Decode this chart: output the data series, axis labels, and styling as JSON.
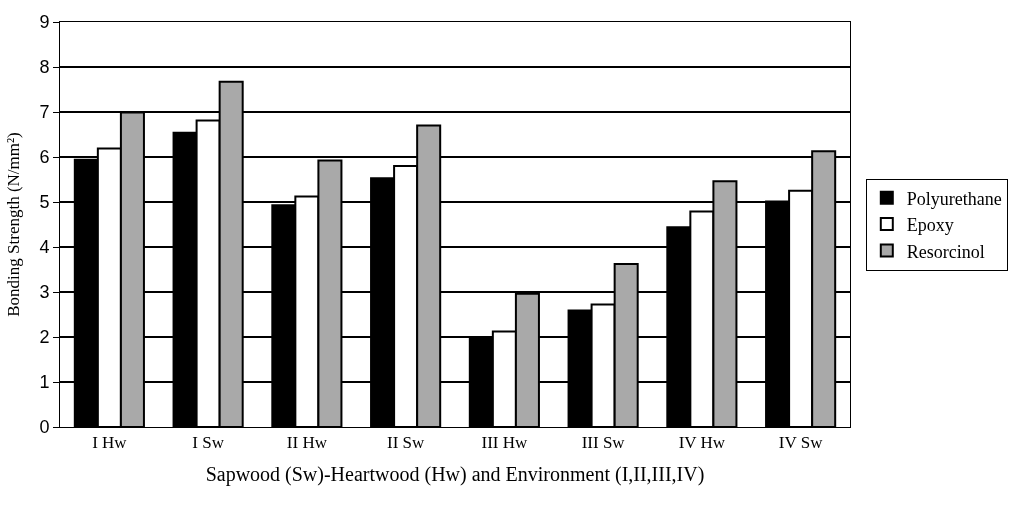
{
  "chart_data": {
    "type": "bar",
    "xlabel": "Sapwood (Sw)-Heartwood (Hw) and Environment (I,II,III,IV)",
    "ylabel": "Bonding Strength (N/mm²)",
    "categories": [
      "I Hw",
      "I Sw",
      "II Hw",
      "II Sw",
      "III Hw",
      "III Sw",
      "IV Hw",
      "IV Sw"
    ],
    "series": [
      {
        "name": "Polyurethane",
        "color": "#000000",
        "values": [
          5.94,
          6.54,
          4.93,
          5.53,
          1.99,
          2.59,
          4.44,
          5.01
        ]
      },
      {
        "name": "Epoxy",
        "color": "#ffffff",
        "values": [
          6.19,
          6.81,
          5.12,
          5.8,
          2.12,
          2.72,
          4.79,
          5.25
        ]
      },
      {
        "name": "Resorcinol",
        "color": "#a9a9a9",
        "values": [
          6.99,
          7.67,
          5.92,
          6.7,
          2.96,
          3.62,
          5.46,
          6.13
        ]
      }
    ],
    "ylim": [
      0,
      9
    ],
    "yticks": [
      0,
      1,
      2,
      3,
      4,
      5,
      6,
      7,
      8,
      9
    ],
    "grid": "y",
    "legend": "right"
  }
}
